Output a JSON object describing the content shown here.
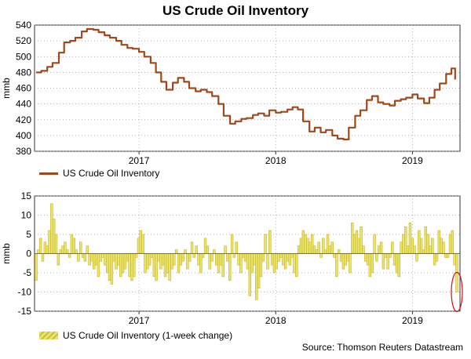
{
  "title": "US Crude Oil Inventory",
  "source": "Source: Thomson Reuters Datastream",
  "colors": {
    "level_line": "#a0471c",
    "change_fill": "#e9e46a",
    "change_stroke": "#c9b22a",
    "highlight": "#d01010"
  },
  "chart_data": [
    {
      "type": "line",
      "ylabel": "mmb",
      "ylim": [
        380,
        540
      ],
      "yticks": [
        "380",
        "400",
        "420",
        "440",
        "460",
        "480",
        "500",
        "520",
        "540"
      ],
      "xticks": [
        "2017",
        "2018",
        "2019"
      ],
      "grid": true,
      "legend_position": "bottom-left",
      "series": [
        {
          "name": "US Crude Oil Inventory",
          "x": [
            "2016-04-01",
            "2016-04-15",
            "2016-05-01",
            "2016-05-15",
            "2016-06-01",
            "2016-06-15",
            "2016-07-01",
            "2016-07-15",
            "2016-08-01",
            "2016-08-15",
            "2016-09-01",
            "2016-09-15",
            "2016-10-01",
            "2016-10-15",
            "2016-11-01",
            "2016-11-15",
            "2016-12-01",
            "2016-12-15",
            "2017-01-01",
            "2017-01-15",
            "2017-02-01",
            "2017-02-15",
            "2017-03-01",
            "2017-03-15",
            "2017-04-01",
            "2017-04-15",
            "2017-05-01",
            "2017-05-15",
            "2017-06-01",
            "2017-06-15",
            "2017-07-01",
            "2017-07-15",
            "2017-08-01",
            "2017-08-15",
            "2017-09-01",
            "2017-09-15",
            "2017-10-01",
            "2017-10-15",
            "2017-11-01",
            "2017-11-15",
            "2017-12-01",
            "2017-12-15",
            "2018-01-01",
            "2018-01-15",
            "2018-02-01",
            "2018-02-15",
            "2018-03-01",
            "2018-03-15",
            "2018-04-01",
            "2018-04-15",
            "2018-05-01",
            "2018-05-15",
            "2018-06-01",
            "2018-06-15",
            "2018-07-01",
            "2018-07-15",
            "2018-08-01",
            "2018-08-15",
            "2018-09-01",
            "2018-09-15",
            "2018-10-01",
            "2018-10-15",
            "2018-11-01",
            "2018-11-15",
            "2018-12-01",
            "2018-12-15",
            "2019-01-01",
            "2019-01-15",
            "2019-02-01",
            "2019-02-15",
            "2019-03-01",
            "2019-03-15",
            "2019-04-01",
            "2019-04-15",
            "2019-04-25"
          ],
          "values": [
            480,
            482,
            487,
            492,
            505,
            518,
            520,
            524,
            532,
            535,
            534,
            531,
            527,
            524,
            520,
            515,
            511,
            510,
            506,
            500,
            492,
            480,
            468,
            458,
            467,
            473,
            468,
            460,
            456,
            458,
            455,
            450,
            440,
            425,
            415,
            418,
            421,
            422,
            426,
            428,
            425,
            432,
            429,
            430,
            433,
            436,
            433,
            418,
            405,
            410,
            404,
            407,
            400,
            396,
            395,
            410,
            425,
            432,
            445,
            450,
            442,
            440,
            438,
            444,
            446,
            448,
            452,
            447,
            441,
            448,
            458,
            466,
            478,
            485,
            471
          ]
        }
      ]
    },
    {
      "type": "bar",
      "ylabel": "mmb",
      "ylim": [
        -15,
        15
      ],
      "yticks": [
        "-15",
        "-10",
        "-5",
        "0",
        "5",
        "10",
        "15"
      ],
      "xticks": [
        "2017",
        "2018",
        "2019"
      ],
      "grid": true,
      "legend_position": "bottom-left",
      "series": [
        {
          "name": "US Crude Oil Inventory (1-week change)",
          "values": [
            -7,
            1,
            4,
            -2,
            3,
            2,
            6,
            13,
            9,
            5,
            -3,
            1,
            2,
            3,
            1,
            -1,
            5,
            4,
            1,
            -2,
            3,
            -1,
            -2,
            2,
            -3,
            -2,
            -4,
            -3,
            -6,
            -2,
            -1,
            -3,
            -5,
            -7,
            -8,
            -2,
            -4,
            -3,
            -6,
            -5,
            -4,
            -2,
            -6,
            -7,
            -6,
            -1,
            4,
            6,
            5,
            -5,
            -4,
            -3,
            -1,
            -6,
            -7,
            -2,
            -4,
            -3,
            -6,
            -5,
            -7,
            -4,
            -3,
            1,
            -5,
            -3,
            -2,
            1,
            -4,
            -2,
            3,
            -1,
            2,
            -3,
            -5,
            -1,
            4,
            2,
            -4,
            -2,
            1,
            -3,
            -5,
            -3,
            -6,
            2,
            -2,
            -7,
            5,
            -1,
            3,
            -3,
            -5,
            -1,
            -2,
            -4,
            -11,
            -5,
            -3,
            -12,
            -9,
            -6,
            -2,
            5,
            -4,
            6,
            -3,
            -5,
            -4,
            -2,
            -1,
            -3,
            -4,
            -2,
            -3,
            -1,
            -5,
            -6,
            2,
            4,
            6,
            5,
            4,
            3,
            5,
            2,
            1,
            3,
            -1,
            4,
            1,
            5,
            2,
            3,
            -1,
            -6,
            1,
            -2,
            -4,
            -3,
            -2,
            -5,
            8,
            5,
            6,
            4,
            7,
            2,
            -2,
            -3,
            -6,
            -5,
            5,
            -2,
            2,
            3,
            -4,
            -1,
            -4,
            -1,
            3,
            -3,
            -5,
            -6,
            3,
            5,
            7,
            2,
            8,
            4,
            2,
            -2,
            6,
            4,
            1,
            7,
            5,
            2,
            4,
            -3,
            -2,
            6,
            4,
            3,
            -1,
            -1,
            5,
            6,
            -3,
            -10
          ]
        }
      ],
      "annotation": "red ellipse around the latest weekly change"
    }
  ]
}
